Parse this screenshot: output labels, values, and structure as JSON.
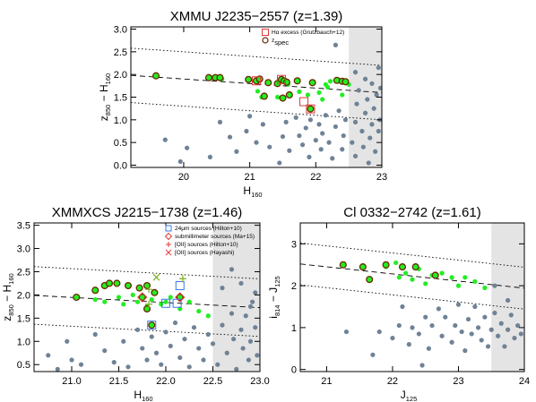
{
  "colors": {
    "grey": "#6f8296",
    "green": "#22ee22",
    "ring": "#6a2800",
    "shade": "#e4e4e4",
    "red": "#e23a3a",
    "blue": "#3b78e7",
    "olive": "#7fae1c"
  },
  "chart_data": [
    {
      "type": "scatter",
      "title": "XMMU J2235−2557 (z=1.39)",
      "xlabel_main": "H",
      "xlabel_sub": "160",
      "ylabel_a": "z",
      "ylabel_a_sub": "850",
      "ylabel_b": " − H",
      "ylabel_b_sub": "160",
      "xlim": [
        19.2,
        23.0
      ],
      "ylim": [
        -0.05,
        3.05
      ],
      "xticks": [
        {
          "v": 20,
          "label": "20"
        },
        {
          "v": 21,
          "label": "21"
        },
        {
          "v": 22,
          "label": "22"
        },
        {
          "v": 23,
          "label": "23"
        }
      ],
      "yticks": [
        {
          "v": 0.0,
          "label": "0.0"
        },
        {
          "v": 0.5,
          "label": "0.5"
        },
        {
          "v": 1.0,
          "label": "1.0"
        },
        {
          "v": 1.5,
          "label": "1.5"
        },
        {
          "v": 2.0,
          "label": "2.0"
        },
        {
          "v": 2.5,
          "label": "2.5"
        },
        {
          "v": 3.0,
          "label": "3.0"
        }
      ],
      "shade_xmin": 22.5,
      "relation": {
        "slope": -0.1,
        "intercept_at_xmin": 1.98,
        "scatter": 0.6
      },
      "legend": [
        {
          "symbol": "red-square",
          "label": "Hα excess (Grutzbauch+12)",
          "sub": ""
        },
        {
          "symbol": "ring",
          "label": "z",
          "sub": "spec"
        }
      ],
      "series": {
        "grey": [
          [
            19.72,
            0.56
          ],
          [
            19.95,
            0.08
          ],
          [
            20.05,
            0.38
          ],
          [
            20.4,
            0.18
          ],
          [
            20.55,
            0.95
          ],
          [
            20.7,
            0.62
          ],
          [
            20.8,
            0.3
          ],
          [
            20.95,
            0.75
          ],
          [
            21.0,
            1.08
          ],
          [
            21.1,
            0.5
          ],
          [
            21.2,
            0.9
          ],
          [
            21.3,
            0.4
          ],
          [
            21.45,
            0.05
          ],
          [
            21.5,
            0.63
          ],
          [
            21.55,
            0.95
          ],
          [
            21.6,
            0.32
          ],
          [
            21.7,
            1.05
          ],
          [
            21.75,
            0.65
          ],
          [
            21.8,
            0.45
          ],
          [
            21.85,
            0.82
          ],
          [
            21.9,
            0.18
          ],
          [
            21.92,
            1.0
          ],
          [
            22.0,
            0.55
          ],
          [
            22.05,
            0.9
          ],
          [
            22.08,
            0.35
          ],
          [
            22.1,
            0.7
          ],
          [
            22.15,
            1.1
          ],
          [
            22.2,
            0.5
          ],
          [
            22.25,
            0.15
          ],
          [
            22.3,
            0.85
          ],
          [
            22.35,
            1.2
          ],
          [
            22.4,
            0.35
          ],
          [
            22.42,
            0.65
          ],
          [
            22.45,
            1.0
          ],
          [
            22.3,
            2.65
          ],
          [
            22.55,
            0.5
          ],
          [
            22.6,
            0.2
          ],
          [
            22.6,
            0.95
          ],
          [
            22.62,
            1.35
          ],
          [
            22.65,
            1.65
          ],
          [
            22.7,
            0.75
          ],
          [
            22.72,
            0.4
          ],
          [
            22.75,
            1.15
          ],
          [
            22.78,
            1.45
          ],
          [
            22.8,
            0.05
          ],
          [
            22.82,
            0.6
          ],
          [
            22.85,
            0.9
          ],
          [
            22.85,
            1.8
          ],
          [
            22.88,
            1.25
          ],
          [
            22.9,
            0.3
          ],
          [
            22.92,
            1.55
          ],
          [
            22.95,
            0.75
          ],
          [
            22.97,
            1.0
          ],
          [
            22.6,
            2.05
          ],
          [
            22.75,
            1.9
          ],
          [
            22.95,
            2.15
          ],
          [
            22.98,
            1.7
          ]
        ],
        "green": [
          [
            20.42,
            1.93
          ],
          [
            20.52,
            1.93
          ],
          [
            20.58,
            1.9
          ],
          [
            21.12,
            1.63
          ],
          [
            21.18,
            1.5
          ],
          [
            21.22,
            1.55
          ],
          [
            21.42,
            1.5
          ],
          [
            21.58,
            1.78
          ],
          [
            21.75,
            1.62
          ],
          [
            21.88,
            1.55
          ],
          [
            22.05,
            1.6
          ],
          [
            22.1,
            1.45
          ],
          [
            22.15,
            1.78
          ],
          [
            22.18,
            1.72
          ],
          [
            22.22,
            1.85
          ],
          [
            22.4,
            1.55
          ],
          [
            22.45,
            1.85
          ],
          [
            22.5,
            1.78
          ]
        ],
        "ringed": [
          [
            19.58,
            1.97
          ],
          [
            20.38,
            1.93
          ],
          [
            20.48,
            1.93
          ],
          [
            20.55,
            1.93
          ],
          [
            20.98,
            1.89
          ],
          [
            21.1,
            1.86
          ],
          [
            21.15,
            1.9
          ],
          [
            21.28,
            1.82
          ],
          [
            21.22,
            1.52
          ],
          [
            21.42,
            1.8
          ],
          [
            21.48,
            1.89
          ],
          [
            21.52,
            1.86
          ],
          [
            21.5,
            1.48
          ],
          [
            21.56,
            1.83
          ],
          [
            21.6,
            1.55
          ],
          [
            21.72,
            1.86
          ],
          [
            21.92,
            1.24
          ],
          [
            21.95,
            1.82
          ],
          [
            22.32,
            1.87
          ],
          [
            22.4,
            1.85
          ],
          [
            22.45,
            1.84
          ]
        ],
        "red_squares": [
          [
            21.1,
            1.86
          ],
          [
            21.48,
            1.89
          ],
          [
            21.92,
            1.24
          ],
          [
            21.82,
            1.4
          ]
        ]
      }
    },
    {
      "type": "scatter",
      "title": "XMMXCS J2215−1738 (z=1.46)",
      "xlabel_main": "H",
      "xlabel_sub": "160",
      "ylabel_a": "z",
      "ylabel_a_sub": "850",
      "ylabel_b": " − H",
      "ylabel_b_sub": "160",
      "xlim": [
        20.6,
        23.0
      ],
      "ylim": [
        0.35,
        3.55
      ],
      "xticks": [
        {
          "v": 21.0,
          "label": "21.0"
        },
        {
          "v": 21.5,
          "label": "21.5"
        },
        {
          "v": 22.0,
          "label": "22.0"
        },
        {
          "v": 22.5,
          "label": "22.5"
        },
        {
          "v": 23.0,
          "label": "23.0"
        }
      ],
      "yticks": [
        {
          "v": 0.5,
          "label": "0.5"
        },
        {
          "v": 1.0,
          "label": "1.0"
        },
        {
          "v": 1.5,
          "label": "1.5"
        },
        {
          "v": 2.0,
          "label": "2.0"
        },
        {
          "v": 2.5,
          "label": "2.5"
        },
        {
          "v": 3.0,
          "label": "3.0"
        },
        {
          "v": 3.5,
          "label": "3.5"
        }
      ],
      "shade_xmin": 22.5,
      "relation": {
        "slope": -0.11,
        "intercept_at_xmin": 1.99,
        "scatter": 0.62
      },
      "legend": [
        {
          "symbol": "blue-square",
          "label": "24μm sources (Hilton+10)",
          "sub": ""
        },
        {
          "symbol": "red-diamond",
          "label": "submillimeter sources (Ma+15)",
          "sub": ""
        },
        {
          "symbol": "red-plus",
          "label": "[OII] sources (Hilton+10)",
          "sub": ""
        },
        {
          "symbol": "red-cross",
          "label": "[OII] sources (Hayashi)",
          "sub": ""
        }
      ],
      "series": {
        "grey": [
          [
            20.75,
            0.7
          ],
          [
            20.85,
            0.4
          ],
          [
            20.95,
            1.0
          ],
          [
            21.0,
            0.6
          ],
          [
            21.1,
            0.5
          ],
          [
            21.25,
            1.15
          ],
          [
            21.35,
            0.8
          ],
          [
            21.45,
            0.55
          ],
          [
            21.55,
            1.0
          ],
          [
            21.6,
            0.45
          ],
          [
            21.7,
            1.25
          ],
          [
            21.75,
            0.85
          ],
          [
            21.8,
            0.6
          ],
          [
            21.85,
            1.1
          ],
          [
            21.9,
            0.75
          ],
          [
            21.95,
            0.5
          ],
          [
            22.0,
            1.2
          ],
          [
            22.05,
            0.9
          ],
          [
            22.1,
            1.4
          ],
          [
            22.15,
            0.65
          ],
          [
            22.2,
            1.05
          ],
          [
            22.25,
            0.45
          ],
          [
            22.3,
            1.3
          ],
          [
            22.35,
            0.85
          ],
          [
            22.4,
            0.6
          ],
          [
            22.45,
            1.15
          ],
          [
            22.5,
            0.95
          ],
          [
            22.55,
            0.5
          ],
          [
            22.6,
            1.35
          ],
          [
            22.65,
            0.75
          ],
          [
            22.7,
            1.6
          ],
          [
            22.72,
            1.05
          ],
          [
            22.75,
            0.4
          ],
          [
            22.8,
            1.25
          ],
          [
            22.82,
            0.85
          ],
          [
            22.85,
            1.55
          ],
          [
            22.88,
            0.6
          ],
          [
            22.9,
            1.0
          ],
          [
            22.92,
            1.85
          ],
          [
            22.95,
            1.3
          ],
          [
            22.97,
            0.7
          ],
          [
            22.6,
            2.15
          ],
          [
            22.7,
            2.55
          ],
          [
            22.8,
            2.25
          ],
          [
            22.9,
            1.75
          ],
          [
            22.95,
            2.05
          ]
        ],
        "green": [
          [
            21.25,
            1.9
          ],
          [
            21.35,
            1.85
          ],
          [
            21.5,
            1.95
          ],
          [
            21.55,
            1.8
          ],
          [
            21.65,
            2.0
          ],
          [
            21.7,
            1.85
          ],
          [
            21.8,
            1.75
          ],
          [
            21.85,
            1.9
          ],
          [
            21.95,
            1.8
          ],
          [
            22.0,
            1.85
          ],
          [
            22.05,
            1.95
          ],
          [
            22.15,
            1.7
          ],
          [
            22.25,
            1.85
          ],
          [
            22.35,
            1.65
          ],
          [
            22.45,
            1.55
          ]
        ],
        "ringed": [
          [
            21.05,
            1.95
          ],
          [
            21.25,
            2.1
          ],
          [
            21.35,
            2.2
          ],
          [
            21.4,
            2.25
          ],
          [
            21.48,
            2.25
          ],
          [
            21.6,
            2.2
          ],
          [
            21.72,
            2.15
          ],
          [
            21.8,
            2.2
          ],
          [
            21.75,
            1.95
          ],
          [
            21.8,
            1.7
          ],
          [
            21.85,
            1.35
          ],
          [
            21.88,
            2.05
          ],
          [
            22.15,
            1.95
          ]
        ],
        "blue_squares": [
          [
            21.85,
            1.35
          ],
          [
            22.0,
            1.82
          ],
          [
            22.12,
            1.82
          ],
          [
            22.15,
            2.2
          ]
        ],
        "red_diamonds": [
          [
            21.75,
            1.95
          ],
          [
            22.15,
            1.95
          ]
        ],
        "red_plus": [
          [
            21.82,
            2.12
          ],
          [
            21.82,
            1.8
          ],
          [
            22.18,
            2.35
          ]
        ],
        "red_cross": [
          [
            21.9,
            2.38
          ]
        ]
      }
    },
    {
      "type": "scatter",
      "title": "Cl 0332−2742 (z=1.61)",
      "xlabel_main": "J",
      "xlabel_sub": "125",
      "ylabel_a": "i",
      "ylabel_a_sub": "814",
      "ylabel_b": " − J",
      "ylabel_b_sub": "125",
      "xlim": [
        20.6,
        24.0
      ],
      "ylim": [
        -0.05,
        3.5
      ],
      "xticks": [
        {
          "v": 21,
          "label": "21"
        },
        {
          "v": 22,
          "label": "22"
        },
        {
          "v": 23,
          "label": "23"
        },
        {
          "v": 24,
          "label": "24"
        }
      ],
      "yticks": [
        {
          "v": 0,
          "label": "0"
        },
        {
          "v": 1,
          "label": "1"
        },
        {
          "v": 2,
          "label": "2"
        },
        {
          "v": 3,
          "label": "3"
        }
      ],
      "shade_xmin": 23.5,
      "relation": {
        "slope": -0.17,
        "intercept_at_xmin": 2.52,
        "scatter": 0.5
      },
      "legend": [],
      "series": {
        "grey": [
          [
            21.3,
            0.9
          ],
          [
            21.7,
            0.35
          ],
          [
            21.8,
            0.9
          ],
          [
            22.0,
            0.75
          ],
          [
            22.1,
            1.05
          ],
          [
            22.15,
            1.5
          ],
          [
            22.25,
            0.6
          ],
          [
            22.3,
            1.0
          ],
          [
            22.4,
            0.85
          ],
          [
            22.5,
            1.25
          ],
          [
            22.55,
            0.5
          ],
          [
            22.6,
            1.05
          ],
          [
            22.7,
            1.45
          ],
          [
            22.75,
            0.8
          ],
          [
            22.8,
            1.25
          ],
          [
            22.9,
            0.65
          ],
          [
            22.95,
            1.05
          ],
          [
            23.0,
            1.55
          ],
          [
            23.05,
            0.9
          ],
          [
            23.1,
            0.45
          ],
          [
            23.15,
            1.2
          ],
          [
            23.2,
            0.85
          ],
          [
            23.25,
            1.5
          ],
          [
            23.3,
            1.0
          ],
          [
            23.35,
            0.7
          ],
          [
            23.4,
            1.25
          ],
          [
            23.45,
            0.55
          ],
          [
            23.5,
            0.95
          ],
          [
            23.55,
            1.35
          ],
          [
            23.6,
            0.8
          ],
          [
            23.65,
            1.1
          ],
          [
            23.7,
            0.55
          ],
          [
            23.75,
            0.95
          ],
          [
            23.8,
            1.3
          ],
          [
            23.85,
            0.75
          ],
          [
            23.9,
            1.05
          ],
          [
            23.95,
            0.85
          ],
          [
            22.45,
            0.1
          ],
          [
            23.55,
            2.0
          ],
          [
            23.75,
            1.65
          ]
        ],
        "green": [
          [
            21.9,
            2.45
          ],
          [
            22.05,
            2.55
          ],
          [
            22.1,
            2.2
          ],
          [
            22.2,
            2.3
          ],
          [
            22.3,
            2.15
          ],
          [
            22.4,
            2.4
          ],
          [
            22.5,
            2.05
          ],
          [
            22.6,
            2.25
          ],
          [
            22.75,
            2.3
          ],
          [
            22.9,
            2.2
          ],
          [
            23.0,
            2.0
          ],
          [
            23.1,
            2.2
          ],
          [
            23.25,
            2.1
          ],
          [
            23.4,
            1.95
          ]
        ],
        "ringed": [
          [
            21.25,
            2.5
          ],
          [
            21.55,
            2.45
          ],
          [
            21.65,
            2.15
          ],
          [
            21.9,
            2.5
          ],
          [
            22.15,
            2.45
          ],
          [
            22.35,
            2.45
          ],
          [
            22.65,
            2.25
          ]
        ]
      }
    }
  ]
}
